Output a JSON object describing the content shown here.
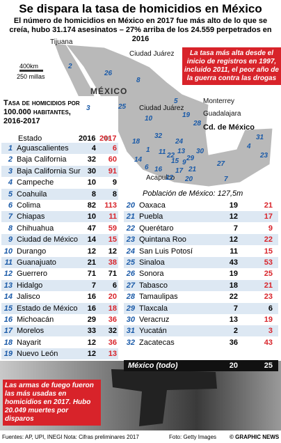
{
  "header": {
    "title": "Se dispara la tasa de homicidios en México",
    "subtitle": "El número de homicidios en México en 2017 fue más alto de lo que se creía, hubo 31.174 asesinatos – 27% arriba de los 24.559 perpetrados en 2016"
  },
  "callout": "La tasa más alta desde el inicio de registros en 1997, incluido 2011, el peor año de la guerra contra las drogas",
  "map": {
    "country": "MÉXICO",
    "cities": [
      "Tijuana",
      "Ciudad Juárez",
      "Ciudad Juárez",
      "Monterrey",
      "Guadalajara",
      "Cd. de México",
      "Acapulco"
    ],
    "scale_km": "400km",
    "scale_mi": "250 millas",
    "population": "Población de México: 127,5m",
    "state_numbers": [
      1,
      2,
      3,
      4,
      5,
      6,
      7,
      8,
      9,
      10,
      11,
      12,
      13,
      14,
      15,
      16,
      17,
      18,
      19,
      20,
      21,
      22,
      23,
      24,
      25,
      26,
      27,
      28,
      29,
      30,
      31,
      32
    ]
  },
  "table": {
    "heading": "Tasa de homicidios por 100.000 habitantes, 2016-2017",
    "columns": [
      "Estado",
      "2016",
      "2017"
    ],
    "rows": [
      [
        1,
        "Aguascalientes",
        4,
        6
      ],
      [
        2,
        "Baja California",
        32,
        60
      ],
      [
        3,
        "Baja California Sur",
        30,
        91
      ],
      [
        4,
        "Campeche",
        10,
        9
      ],
      [
        5,
        "Coahuila",
        8,
        8
      ],
      [
        6,
        "Colima",
        82,
        113
      ],
      [
        7,
        "Chiapas",
        10,
        11
      ],
      [
        8,
        "Chihuahua",
        47,
        59
      ],
      [
        9,
        "Ciudad de México",
        14,
        15
      ],
      [
        10,
        "Durango",
        12,
        12
      ],
      [
        11,
        "Guanajuato",
        21,
        38
      ],
      [
        12,
        "Guerrero",
        71,
        71
      ],
      [
        13,
        "Hidalgo",
        7,
        6
      ],
      [
        14,
        "Jalisco",
        16,
        20
      ],
      [
        15,
        "Estado de México",
        16,
        18
      ],
      [
        16,
        "Michoacán",
        29,
        36
      ],
      [
        17,
        "Morelos",
        33,
        32
      ],
      [
        18,
        "Nayarit",
        12,
        36
      ],
      [
        19,
        "Nuevo León",
        12,
        13
      ],
      [
        20,
        "Oaxaca",
        19,
        21
      ],
      [
        21,
        "Puebla",
        12,
        17
      ],
      [
        22,
        "Querétaro",
        7,
        9
      ],
      [
        23,
        "Quintana Roo",
        12,
        22
      ],
      [
        24,
        "San Luis Potosí",
        11,
        15
      ],
      [
        25,
        "Sinaloa",
        43,
        53
      ],
      [
        26,
        "Sonora",
        19,
        25
      ],
      [
        27,
        "Tabasco",
        18,
        21
      ],
      [
        28,
        "Tamaulipas",
        22,
        23
      ],
      [
        29,
        "Tlaxcala",
        7,
        6
      ],
      [
        30,
        "Veracruz",
        13,
        19
      ],
      [
        31,
        "Yucatán",
        2,
        3
      ],
      [
        32,
        "Zacatecas",
        36,
        43
      ]
    ],
    "total": [
      "México (todo)",
      20,
      25
    ]
  },
  "photo_caption": "Las armas de fuego fueron las más usadas en homicidios en 2017. Hubo 20.049 muertes por disparos",
  "footer": {
    "sources": "Fuentes: AP, UPI, INEGI  Nota: Cifras preliminares 2017",
    "photo": "Foto: Getty Images",
    "credit": "© GRAPHIC NEWS"
  }
}
